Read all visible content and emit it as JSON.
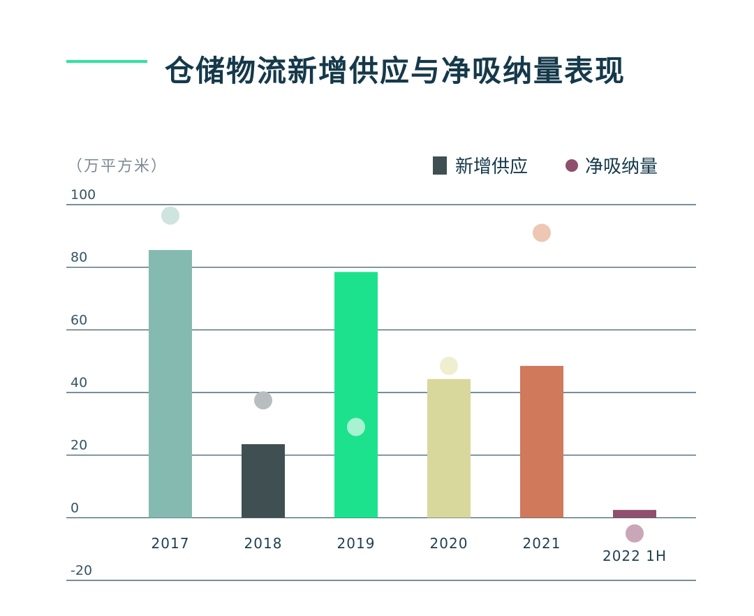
{
  "title": "仓储物流新增供应与净吸纳量表现",
  "colors": {
    "title_line": "#2ee59d",
    "title_text": "#15394a"
  },
  "chart_data": {
    "type": "bar",
    "title": "仓储物流新增供应与净吸纳量表现",
    "ylabel": "（万平方米）",
    "xlabel": "",
    "ylim": [
      -20,
      100
    ],
    "yticks": [
      100,
      80,
      60,
      40,
      20,
      0,
      -20
    ],
    "grid": true,
    "legend": {
      "position": "top-right",
      "entries": [
        {
          "name": "新增供应",
          "marker": "square",
          "color": "#3f4f52"
        },
        {
          "name": "净吸纳量",
          "marker": "circle",
          "color": "#8f4f6d"
        }
      ]
    },
    "categories": [
      "2017",
      "2018",
      "2019",
      "2020",
      "2021",
      "2022 1H"
    ],
    "series": [
      {
        "name": "新增供应",
        "type": "bar",
        "values": [
          85.5,
          23.5,
          78.5,
          44.3,
          48.5,
          2.5
        ],
        "colors": [
          "#85bab0",
          "#3f4f52",
          "#1de28d",
          "#d9d89c",
          "#d0795b",
          "#8f4f6d"
        ]
      },
      {
        "name": "净吸纳量",
        "type": "scatter",
        "values": [
          96.5,
          37.5,
          29.0,
          48.5,
          91.0,
          -5.0
        ],
        "colors": [
          "#cde4df",
          "#b8bebf",
          "#a6f2d1",
          "#efeed0",
          "#edc6b4",
          "#c9a6b8"
        ]
      }
    ]
  }
}
